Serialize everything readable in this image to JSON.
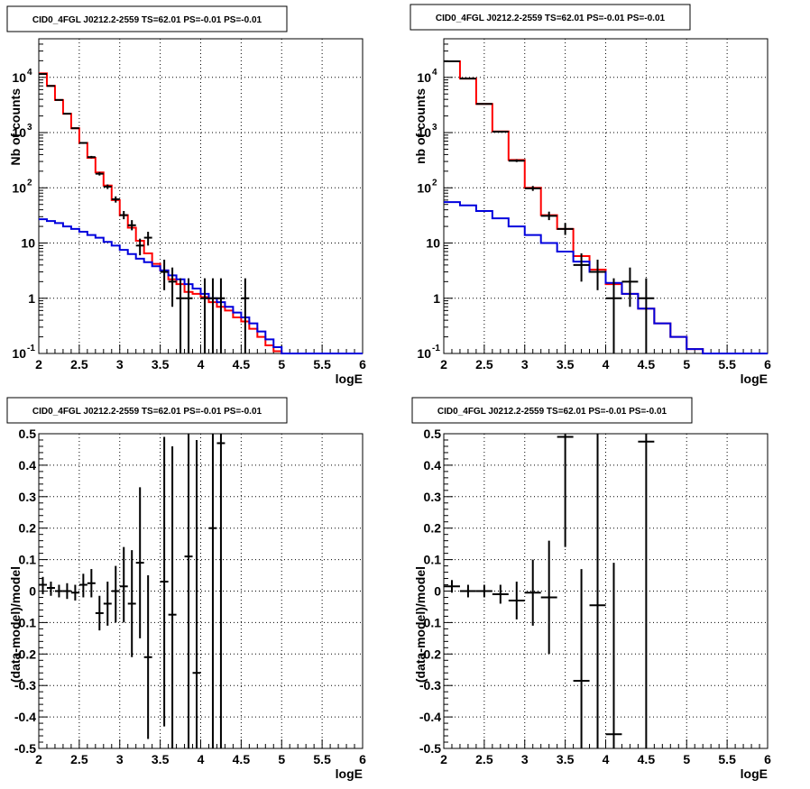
{
  "chart_data": [
    {
      "type": "line",
      "title": "CID0_4FGL J0212.2-2559 TS=62.01 PS=-0.01 PS=-0.01",
      "xlabel": "logE",
      "ylabel": "Nb of counts",
      "xlim": [
        2,
        6
      ],
      "ylim": [
        0.1,
        50000
      ],
      "yscale": "log",
      "grid": true,
      "x_ticks": [
        "2",
        "2.5",
        "3",
        "3.5",
        "4",
        "4.5",
        "5",
        "5.5",
        "6"
      ],
      "y_ticks": [
        {
          "value": 0.1,
          "base": "10",
          "exp": "-1"
        },
        {
          "value": 1,
          "base": "1",
          "exp": ""
        },
        {
          "value": 10,
          "base": "10",
          "exp": ""
        },
        {
          "value": 100,
          "base": "10",
          "exp": "2"
        },
        {
          "value": 1000,
          "base": "10",
          "exp": "3"
        },
        {
          "value": 10000,
          "base": "10",
          "exp": "4"
        }
      ],
      "bin_edges": [
        2,
        2.1,
        2.2,
        2.3,
        2.4,
        2.5,
        2.6,
        2.7,
        2.8,
        2.9,
        3.0,
        3.1,
        3.2,
        3.3,
        3.4,
        3.5,
        3.6,
        3.7,
        3.8,
        3.9,
        4.0,
        4.1,
        4.2,
        4.3,
        4.4,
        4.5,
        4.6,
        4.7,
        4.8,
        4.9,
        5.0,
        5.1,
        5.2,
        5.3,
        5.4,
        5.5,
        5.6,
        5.7,
        5.8,
        5.9,
        6.0
      ],
      "series": [
        {
          "name": "",
          "color": "#ff0000",
          "kind": "step",
          "values": [
            11800,
            7000,
            3900,
            2200,
            1200,
            650,
            350,
            190,
            110,
            60,
            32,
            19,
            11,
            6.5,
            4.2,
            3.2,
            2.2,
            1.8,
            1.3,
            1.2,
            1.05,
            0.85,
            0.7,
            0.6,
            0.45,
            0.38,
            0.28,
            0.2,
            0.14,
            0.11,
            0.1,
            0.1,
            0.1,
            0.1,
            0.1,
            0.1,
            0.1,
            0.1,
            0.1,
            0.1
          ]
        },
        {
          "name": "",
          "color": "#0000dd",
          "kind": "step",
          "values": [
            27,
            25,
            23,
            20,
            18,
            16,
            14,
            12.5,
            10.5,
            9,
            7.5,
            6.3,
            5.2,
            4.5,
            3.8,
            3.2,
            2.6,
            2.2,
            1.8,
            1.5,
            1.2,
            1.0,
            0.85,
            0.7,
            0.55,
            0.45,
            0.35,
            0.25,
            0.18,
            0.13,
            0.1,
            0.1,
            0.1,
            0.1,
            0.1,
            0.1,
            0.1,
            0.1,
            0.1,
            0.1
          ]
        }
      ],
      "points": [
        {
          "x": 2.05,
          "y": 11500,
          "lo": 11300,
          "hi": 11700
        },
        {
          "x": 2.15,
          "y": 7000,
          "lo": 6900,
          "hi": 7100
        },
        {
          "x": 2.25,
          "y": 3900,
          "lo": 3840,
          "hi": 3960
        },
        {
          "x": 2.35,
          "y": 2200,
          "lo": 2150,
          "hi": 2250
        },
        {
          "x": 2.45,
          "y": 1200,
          "lo": 1170,
          "hi": 1235
        },
        {
          "x": 2.55,
          "y": 650,
          "lo": 625,
          "hi": 675
        },
        {
          "x": 2.65,
          "y": 360,
          "lo": 342,
          "hi": 378
        },
        {
          "x": 2.75,
          "y": 180,
          "lo": 167,
          "hi": 193
        },
        {
          "x": 2.85,
          "y": 105,
          "lo": 95,
          "hi": 115
        },
        {
          "x": 2.95,
          "y": 62,
          "lo": 54,
          "hi": 70
        },
        {
          "x": 3.05,
          "y": 32,
          "lo": 27,
          "hi": 38
        },
        {
          "x": 3.15,
          "y": 21,
          "lo": 17,
          "hi": 26
        },
        {
          "x": 3.25,
          "y": 9,
          "lo": 6,
          "hi": 12
        },
        {
          "x": 3.35,
          "y": 12.5,
          "lo": 9,
          "hi": 16
        },
        {
          "x": 3.55,
          "y": 3,
          "lo": 1.4,
          "hi": 5
        },
        {
          "x": 3.65,
          "y": 2,
          "lo": 0.7,
          "hi": 3.6
        },
        {
          "x": 3.75,
          "y": 1,
          "lo": 0.1,
          "hi": 2.3
        },
        {
          "x": 3.85,
          "y": 1,
          "lo": 0.1,
          "hi": 2.3
        },
        {
          "x": 4.05,
          "y": 1,
          "lo": 0.1,
          "hi": 2.3
        },
        {
          "x": 4.15,
          "y": 1,
          "lo": 0.1,
          "hi": 2.3
        },
        {
          "x": 4.25,
          "y": 1,
          "lo": 0.1,
          "hi": 2.3
        },
        {
          "x": 4.55,
          "y": 1,
          "lo": 0.1,
          "hi": 2.3
        }
      ]
    },
    {
      "type": "line",
      "title": "CID0_4FGL J0212.2-2559 TS=62.01 PS=-0.01 PS=-0.01",
      "xlabel": "logE",
      "ylabel": "nb of counts",
      "xlim": [
        2,
        6
      ],
      "ylim": [
        0.1,
        50000
      ],
      "yscale": "log",
      "grid": true,
      "x_ticks": [
        "2",
        "2.5",
        "3",
        "3.5",
        "4",
        "4.5",
        "5",
        "5.5",
        "6"
      ],
      "y_ticks": [
        {
          "value": 0.1,
          "base": "10",
          "exp": "-1"
        },
        {
          "value": 1,
          "base": "1",
          "exp": ""
        },
        {
          "value": 10,
          "base": "10",
          "exp": ""
        },
        {
          "value": 100,
          "base": "10",
          "exp": "2"
        },
        {
          "value": 1000,
          "base": "10",
          "exp": "3"
        },
        {
          "value": 10000,
          "base": "10",
          "exp": "4"
        }
      ],
      "bin_edges": [
        2,
        2.2,
        2.4,
        2.6,
        2.8,
        3.0,
        3.2,
        3.4,
        3.6,
        3.8,
        4.0,
        4.2,
        4.4,
        4.6,
        4.8,
        5.0,
        5.2,
        5.4,
        5.6,
        5.8,
        6.0
      ],
      "series": [
        {
          "name": "",
          "color": "#ff0000",
          "kind": "step",
          "values": [
            19500,
            9500,
            3300,
            1050,
            320,
            100,
            32,
            18,
            5.8,
            3.3,
            1.8,
            1.2,
            0.65,
            0.35,
            0.2,
            0.12,
            0.1,
            0.1,
            0.1,
            0.1
          ]
        },
        {
          "name": "",
          "color": "#0000dd",
          "kind": "step",
          "values": [
            55,
            48,
            38,
            28,
            20,
            14,
            10,
            7,
            4.6,
            3,
            1.9,
            1.2,
            0.65,
            0.35,
            0.2,
            0.12,
            0.1,
            0.1,
            0.1,
            0.1
          ]
        }
      ],
      "points": [
        {
          "x": 2.1,
          "y": 19500,
          "lo": 19300,
          "hi": 19700
        },
        {
          "x": 2.3,
          "y": 9500,
          "lo": 9400,
          "hi": 9600
        },
        {
          "x": 2.5,
          "y": 3300,
          "lo": 3240,
          "hi": 3360
        },
        {
          "x": 2.7,
          "y": 1040,
          "lo": 1008,
          "hi": 1072
        },
        {
          "x": 2.9,
          "y": 310,
          "lo": 293,
          "hi": 328
        },
        {
          "x": 3.1,
          "y": 98,
          "lo": 88,
          "hi": 108
        },
        {
          "x": 3.3,
          "y": 31,
          "lo": 26,
          "hi": 37
        },
        {
          "x": 3.5,
          "y": 18,
          "lo": 14,
          "hi": 23
        },
        {
          "x": 3.7,
          "y": 4,
          "lo": 2,
          "hi": 6.5
        },
        {
          "x": 3.9,
          "y": 3,
          "lo": 1.4,
          "hi": 5
        },
        {
          "x": 4.1,
          "y": 1,
          "lo": 0.1,
          "hi": 2.3
        },
        {
          "x": 4.3,
          "y": 2,
          "lo": 0.7,
          "hi": 3.6
        },
        {
          "x": 4.5,
          "y": 1,
          "lo": 0.1,
          "hi": 2.3
        }
      ]
    },
    {
      "type": "scatter",
      "title": "CID0_4FGL J0212.2-2559 TS=62.01 PS=-0.01 PS=-0.01",
      "xlabel": "logE",
      "ylabel": "(data-model)/model",
      "xlim": [
        2,
        6
      ],
      "ylim": [
        -0.5,
        0.5
      ],
      "yscale": "linear",
      "grid": true,
      "x_ticks": [
        "2",
        "2.5",
        "3",
        "3.5",
        "4",
        "4.5",
        "5",
        "5.5",
        "6"
      ],
      "y_ticks": [
        "-0.5",
        "-0.4",
        "-0.3",
        "-0.2",
        "-0.1",
        "0",
        "0.1",
        "0.2",
        "0.3",
        "0.4",
        "0.5"
      ],
      "xerr": 0.05,
      "points": [
        {
          "x": 2.05,
          "y": 0.02,
          "lo": -0.01,
          "hi": 0.045
        },
        {
          "x": 2.15,
          "y": 0.01,
          "lo": -0.015,
          "hi": 0.03
        },
        {
          "x": 2.25,
          "y": 0.0,
          "lo": -0.02,
          "hi": 0.02
        },
        {
          "x": 2.35,
          "y": 0.0,
          "lo": -0.025,
          "hi": 0.025
        },
        {
          "x": 2.45,
          "y": -0.005,
          "lo": -0.03,
          "hi": 0.02
        },
        {
          "x": 2.55,
          "y": 0.02,
          "lo": -0.02,
          "hi": 0.055
        },
        {
          "x": 2.65,
          "y": 0.025,
          "lo": -0.02,
          "hi": 0.07
        },
        {
          "x": 2.75,
          "y": -0.07,
          "lo": -0.125,
          "hi": -0.015
        },
        {
          "x": 2.85,
          "y": -0.04,
          "lo": -0.11,
          "hi": 0.03
        },
        {
          "x": 2.95,
          "y": 0.0,
          "lo": -0.1,
          "hi": 0.08
        },
        {
          "x": 3.05,
          "y": 0.015,
          "lo": -0.1,
          "hi": 0.14
        },
        {
          "x": 3.15,
          "y": -0.04,
          "lo": -0.21,
          "hi": 0.13
        },
        {
          "x": 3.25,
          "y": 0.09,
          "lo": -0.15,
          "hi": 0.33
        },
        {
          "x": 3.35,
          "y": -0.21,
          "lo": -0.47,
          "hi": 0.05
        },
        {
          "x": 3.55,
          "y": 0.03,
          "lo": -0.43,
          "hi": 0.49
        },
        {
          "x": 3.65,
          "y": -0.075,
          "lo": -0.5,
          "hi": 0.46
        },
        {
          "x": 3.85,
          "y": 0.11,
          "lo": -0.5,
          "hi": 0.5
        },
        {
          "x": 3.95,
          "y": -0.26,
          "lo": -0.5,
          "hi": 0.48
        },
        {
          "x": 4.15,
          "y": 0.2,
          "lo": -0.5,
          "hi": 0.5
        },
        {
          "x": 4.25,
          "y": 0.47,
          "lo": -0.5,
          "hi": 0.5
        }
      ]
    },
    {
      "type": "scatter",
      "title": "CID0_4FGL J0212.2-2559 TS=62.01 PS=-0.01 PS=-0.01",
      "xlabel": "logE",
      "ylabel": "(data-model)/model",
      "xlim": [
        2,
        6
      ],
      "ylim": [
        -0.5,
        0.5
      ],
      "yscale": "linear",
      "grid": true,
      "x_ticks": [
        "2",
        "2.5",
        "3",
        "3.5",
        "4",
        "4.5",
        "5",
        "5.5",
        "6"
      ],
      "y_ticks": [
        "-0.5",
        "-0.4",
        "-0.3",
        "-0.2",
        "-0.1",
        "0",
        "0.1",
        "0.2",
        "0.3",
        "0.4",
        "0.5"
      ],
      "xerr": 0.1,
      "points": [
        {
          "x": 2.1,
          "y": 0.015,
          "lo": -0.005,
          "hi": 0.035
        },
        {
          "x": 2.3,
          "y": 0.0,
          "lo": -0.02,
          "hi": 0.02
        },
        {
          "x": 2.5,
          "y": 0.0,
          "lo": -0.02,
          "hi": 0.02
        },
        {
          "x": 2.7,
          "y": -0.01,
          "lo": -0.04,
          "hi": 0.02
        },
        {
          "x": 2.9,
          "y": -0.03,
          "lo": -0.09,
          "hi": 0.03
        },
        {
          "x": 3.1,
          "y": -0.005,
          "lo": -0.11,
          "hi": 0.1
        },
        {
          "x": 3.3,
          "y": -0.02,
          "lo": -0.2,
          "hi": 0.16
        },
        {
          "x": 3.5,
          "y": 0.49,
          "lo": 0.14,
          "hi": 0.5
        },
        {
          "x": 3.7,
          "y": -0.285,
          "lo": -0.5,
          "hi": 0.07
        },
        {
          "x": 3.9,
          "y": -0.045,
          "lo": -0.5,
          "hi": 0.5
        },
        {
          "x": 4.1,
          "y": -0.455,
          "lo": -0.5,
          "hi": 0.09
        },
        {
          "x": 4.5,
          "y": 0.475,
          "lo": -0.5,
          "hi": 0.5
        }
      ]
    }
  ]
}
